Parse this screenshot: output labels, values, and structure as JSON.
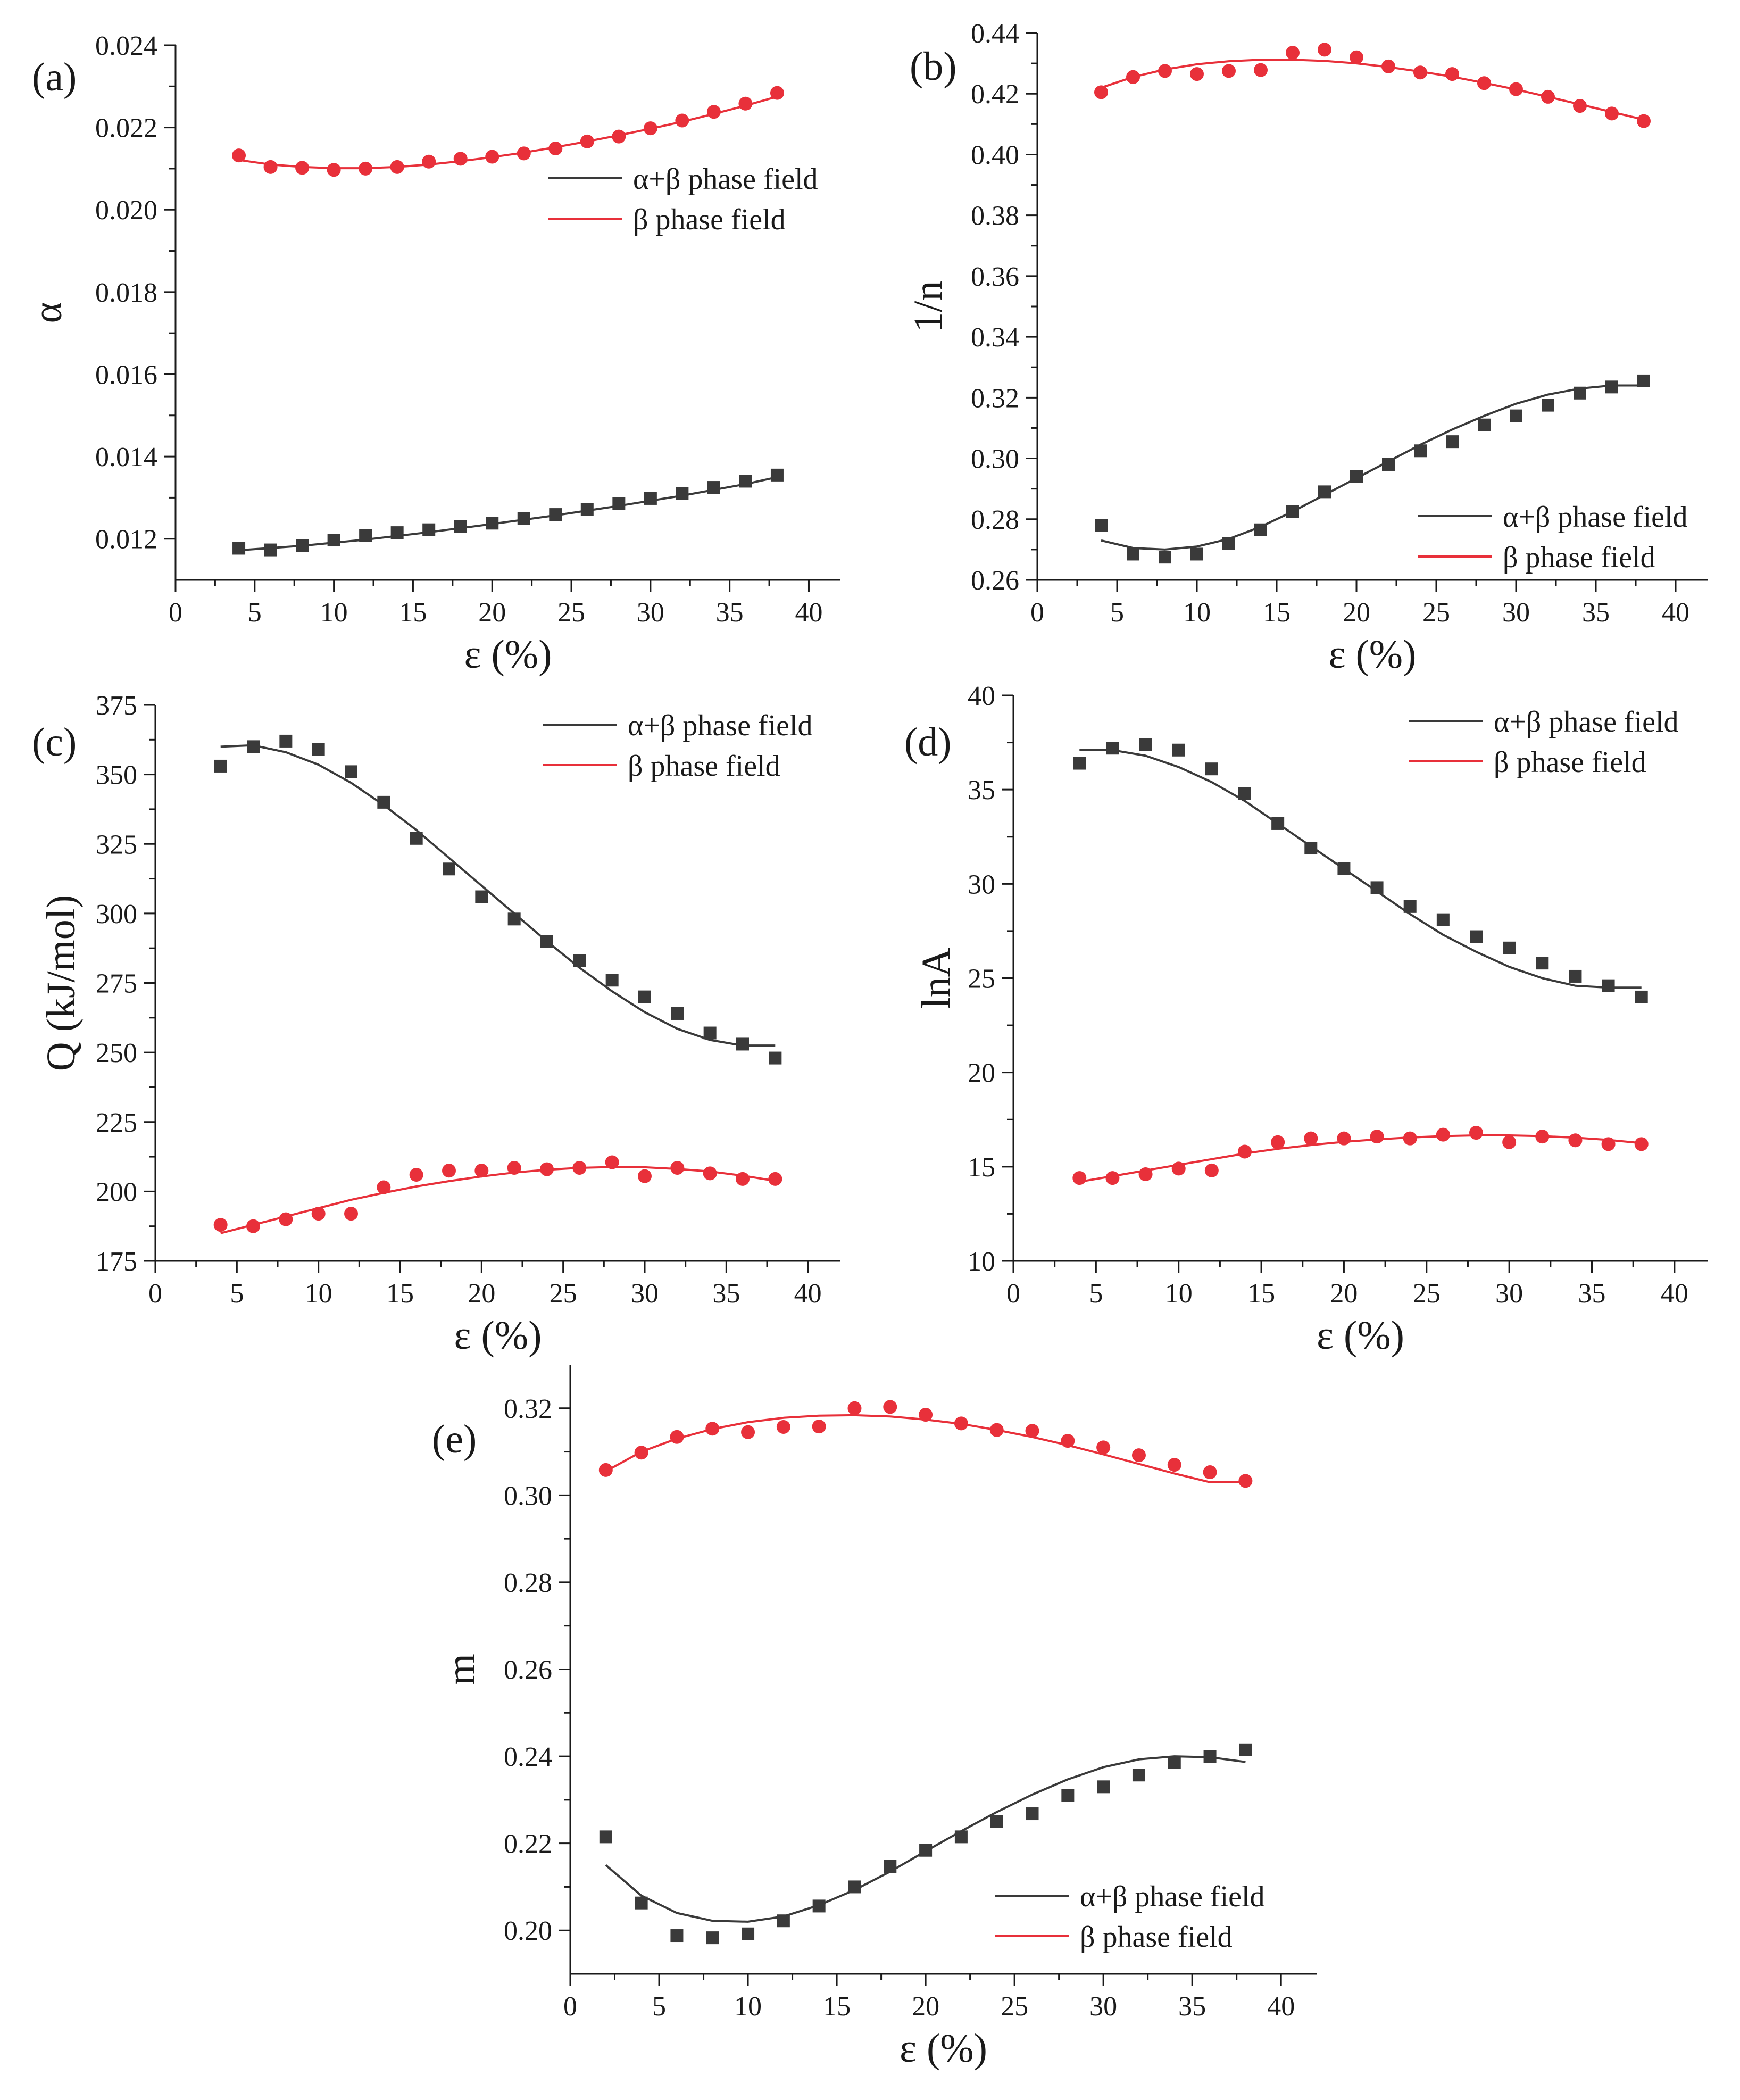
{
  "figure": {
    "title": ""
  },
  "colors": {
    "black_series": "#3a3a3a",
    "red_series": "#e8303a",
    "axis": "#1a1a1a"
  },
  "chart_data": [
    {
      "panel": "(a)",
      "type": "scatter",
      "title": "",
      "xlabel": "ε (%)",
      "ylabel": "α",
      "xlim": [
        0,
        42
      ],
      "ylim": [
        0.011,
        0.024
      ],
      "xticks": [
        0,
        5,
        10,
        15,
        20,
        25,
        30,
        35,
        40
      ],
      "xtick_labels": [
        "0",
        "5",
        "10",
        "15",
        "20",
        "25",
        "30",
        "35",
        "40"
      ],
      "yticks": [
        0.012,
        0.014,
        0.016,
        0.018,
        0.02,
        0.022,
        0.024
      ],
      "ytick_labels": [
        "0.012",
        "0.014",
        "0.016",
        "0.018",
        "0.020",
        "0.022",
        "0.024"
      ],
      "legend_position": "center-right",
      "series": [
        {
          "name": "α+β phase field",
          "marker": "square",
          "color": "#3a3a3a",
          "x": [
            4,
            6,
            8,
            10,
            12,
            14,
            16,
            18,
            20,
            22,
            24,
            26,
            28,
            30,
            32,
            34,
            36,
            38
          ],
          "y": [
            0.01177,
            0.01173,
            0.01184,
            0.01197,
            0.01208,
            0.01215,
            0.01222,
            0.0123,
            0.01238,
            0.01249,
            0.01259,
            0.01271,
            0.01285,
            0.01298,
            0.0131,
            0.01325,
            0.0134,
            0.01355
          ],
          "fit_x": [
            4,
            8,
            12,
            16,
            20,
            24,
            28,
            32,
            36,
            38
          ],
          "fit_y": [
            0.01172,
            0.01183,
            0.01198,
            0.01216,
            0.01236,
            0.01257,
            0.0128,
            0.01305,
            0.01333,
            0.0135
          ]
        },
        {
          "name": "β phase field",
          "marker": "circle",
          "color": "#e8303a",
          "x": [
            4,
            6,
            8,
            10,
            12,
            14,
            16,
            18,
            20,
            22,
            24,
            26,
            28,
            30,
            32,
            34,
            36,
            38
          ],
          "y": [
            0.02132,
            0.02104,
            0.02102,
            0.02097,
            0.021,
            0.02104,
            0.02117,
            0.02124,
            0.02129,
            0.02137,
            0.02149,
            0.02166,
            0.02178,
            0.02198,
            0.02217,
            0.02238,
            0.02258,
            0.02284
          ],
          "fit_x": [
            4,
            6,
            8,
            10,
            12,
            14,
            16,
            18,
            20,
            22,
            24,
            26,
            28,
            30,
            32,
            34,
            36,
            38
          ],
          "fit_y": [
            0.02121,
            0.0211,
            0.02104,
            0.02101,
            0.02101,
            0.02104,
            0.0211,
            0.02118,
            0.02128,
            0.02139,
            0.02152,
            0.02166,
            0.02181,
            0.02197,
            0.02214,
            0.02233,
            0.02253,
            0.02275
          ]
        }
      ]
    },
    {
      "panel": "(b)",
      "type": "scatter",
      "title": "",
      "xlabel": "ε (%)",
      "ylabel": "1/n",
      "xlim": [
        0,
        42
      ],
      "ylim": [
        0.26,
        0.44
      ],
      "xticks": [
        0,
        5,
        10,
        15,
        20,
        25,
        30,
        35,
        40
      ],
      "xtick_labels": [
        "0",
        "5",
        "10",
        "15",
        "20",
        "25",
        "30",
        "35",
        "40"
      ],
      "yticks": [
        0.26,
        0.28,
        0.3,
        0.32,
        0.34,
        0.36,
        0.38,
        0.4,
        0.42,
        0.44
      ],
      "ytick_labels": [
        "0.26",
        "0.28",
        "0.30",
        "0.32",
        "0.34",
        "0.36",
        "0.38",
        "0.40",
        "0.42",
        "0.44"
      ],
      "legend_position": "bottom-right",
      "series": [
        {
          "name": "α+β phase field",
          "marker": "square",
          "color": "#3a3a3a",
          "x": [
            4,
            6,
            8,
            10,
            12,
            14,
            16,
            18,
            20,
            22,
            24,
            26,
            28,
            30,
            32,
            34,
            36,
            38
          ],
          "y": [
            0.278,
            0.2685,
            0.2675,
            0.2685,
            0.272,
            0.2765,
            0.2825,
            0.289,
            0.294,
            0.298,
            0.3025,
            0.3055,
            0.311,
            0.314,
            0.3175,
            0.3215,
            0.3235,
            0.3255
          ],
          "fit_x": [
            4,
            6,
            8,
            10,
            12,
            14,
            16,
            18,
            20,
            22,
            24,
            26,
            28,
            30,
            32,
            34,
            36,
            38
          ],
          "fit_y": [
            0.273,
            0.2705,
            0.27,
            0.271,
            0.2735,
            0.2775,
            0.2825,
            0.288,
            0.2935,
            0.299,
            0.3045,
            0.3095,
            0.314,
            0.318,
            0.321,
            0.323,
            0.324,
            0.324
          ]
        },
        {
          "name": "β phase field",
          "marker": "circle",
          "color": "#e8303a",
          "x": [
            4,
            6,
            8,
            10,
            12,
            14,
            16,
            18,
            20,
            22,
            24,
            26,
            28,
            30,
            32,
            34,
            36,
            38
          ],
          "y": [
            0.4205,
            0.4255,
            0.4275,
            0.4265,
            0.4275,
            0.4278,
            0.4335,
            0.4345,
            0.432,
            0.429,
            0.427,
            0.4265,
            0.4235,
            0.4215,
            0.419,
            0.416,
            0.4135,
            0.411
          ],
          "fit_x": [
            4,
            6,
            8,
            10,
            12,
            14,
            16,
            18,
            20,
            22,
            24,
            26,
            28,
            30,
            32,
            34,
            36,
            38
          ],
          "fit_y": [
            0.422,
            0.4255,
            0.428,
            0.4297,
            0.4307,
            0.4312,
            0.4312,
            0.4308,
            0.43,
            0.4288,
            0.4273,
            0.4256,
            0.4236,
            0.4214,
            0.419,
            0.4165,
            0.414,
            0.4115
          ]
        }
      ]
    },
    {
      "panel": "(c)",
      "type": "scatter",
      "title": "",
      "xlabel": "ε (%)",
      "ylabel": "Q (kJ/mol)",
      "xlim": [
        0,
        42
      ],
      "ylim": [
        175,
        375
      ],
      "xticks": [
        0,
        5,
        10,
        15,
        20,
        25,
        30,
        35,
        40
      ],
      "xtick_labels": [
        "0",
        "5",
        "10",
        "15",
        "20",
        "25",
        "30",
        "35",
        "40"
      ],
      "yticks": [
        175,
        200,
        225,
        250,
        275,
        300,
        325,
        350,
        375
      ],
      "ytick_labels": [
        "175",
        "200",
        "225",
        "250",
        "275",
        "300",
        "325",
        "350",
        "375"
      ],
      "legend_position": "top-right",
      "series": [
        {
          "name": "α+β phase field",
          "marker": "square",
          "color": "#3a3a3a",
          "x": [
            4,
            6,
            8,
            10,
            12,
            14,
            16,
            18,
            20,
            22,
            24,
            26,
            28,
            30,
            32,
            34,
            36,
            38
          ],
          "y": [
            353,
            360,
            362,
            359,
            351,
            340,
            327,
            316,
            306,
            298,
            290,
            283,
            276,
            270,
            264,
            257,
            253,
            248
          ],
          "fit_x": [
            4,
            6,
            8,
            10,
            12,
            14,
            16,
            18,
            20,
            22,
            24,
            26,
            28,
            30,
            32,
            34,
            36,
            38
          ],
          "fit_y": [
            360,
            360.5,
            358,
            353.5,
            347,
            339,
            330,
            320,
            310,
            300,
            290,
            280.5,
            272,
            264.5,
            258.5,
            254.5,
            252.5,
            252.5
          ]
        },
        {
          "name": "β phase field",
          "marker": "circle",
          "color": "#e8303a",
          "x": [
            4,
            6,
            8,
            10,
            12,
            14,
            16,
            18,
            20,
            22,
            24,
            26,
            28,
            30,
            32,
            34,
            36,
            38
          ],
          "y": [
            188,
            187.5,
            190,
            192,
            192,
            201.5,
            206,
            207.5,
            207.5,
            208.5,
            208,
            208.5,
            210.5,
            205.5,
            208.5,
            206.5,
            204.5,
            204.5
          ],
          "fit_x": [
            4,
            6,
            8,
            10,
            12,
            14,
            16,
            18,
            20,
            22,
            24,
            26,
            28,
            30,
            32,
            34,
            36,
            38
          ],
          "fit_y": [
            185,
            188,
            191,
            194,
            197,
            199.5,
            201.8,
            203.7,
            205.4,
            206.8,
            207.8,
            208.5,
            208.8,
            208.7,
            208.1,
            207.2,
            205.7,
            203.8
          ]
        }
      ]
    },
    {
      "panel": "(d)",
      "type": "scatter",
      "title": "",
      "xlabel": "ε (%)",
      "ylabel": "lnA",
      "xlim": [
        0,
        42
      ],
      "ylim": [
        10,
        40
      ],
      "xticks": [
        0,
        5,
        10,
        15,
        20,
        25,
        30,
        35,
        40
      ],
      "xtick_labels": [
        "0",
        "5",
        "10",
        "15",
        "20",
        "25",
        "30",
        "35",
        "40"
      ],
      "yticks": [
        10,
        15,
        20,
        25,
        30,
        35,
        40
      ],
      "ytick_labels": [
        "10",
        "15",
        "20",
        "25",
        "30",
        "35",
        "40"
      ],
      "legend_position": "top-right",
      "series": [
        {
          "name": "α+β phase field",
          "marker": "square",
          "color": "#3a3a3a",
          "x": [
            4,
            6,
            8,
            10,
            12,
            14,
            16,
            18,
            20,
            22,
            24,
            26,
            28,
            30,
            32,
            34,
            36,
            38
          ],
          "y": [
            36.4,
            37.2,
            37.4,
            37.1,
            36.1,
            34.8,
            33.2,
            31.9,
            30.8,
            29.8,
            28.8,
            28.1,
            27.2,
            26.6,
            25.8,
            25.1,
            24.6,
            24.0
          ],
          "fit_x": [
            4,
            6,
            8,
            10,
            12,
            14,
            16,
            18,
            20,
            22,
            24,
            26,
            28,
            30,
            32,
            34,
            36,
            38
          ],
          "fit_y": [
            37.1,
            37.1,
            36.8,
            36.2,
            35.4,
            34.4,
            33.2,
            32.0,
            30.8,
            29.6,
            28.4,
            27.3,
            26.4,
            25.6,
            25.0,
            24.6,
            24.5,
            24.5
          ]
        },
        {
          "name": "β phase field",
          "marker": "circle",
          "color": "#e8303a",
          "x": [
            4,
            6,
            8,
            10,
            12,
            14,
            16,
            18,
            20,
            22,
            24,
            26,
            28,
            30,
            32,
            34,
            36,
            38
          ],
          "y": [
            14.4,
            14.4,
            14.6,
            14.9,
            14.8,
            15.8,
            16.3,
            16.5,
            16.5,
            16.6,
            16.5,
            16.7,
            16.8,
            16.3,
            16.6,
            16.4,
            16.2,
            16.2
          ],
          "fit_x": [
            4,
            6,
            8,
            10,
            12,
            14,
            16,
            18,
            20,
            22,
            24,
            26,
            28,
            30,
            32,
            34,
            36,
            38
          ],
          "fit_y": [
            14.2,
            14.5,
            14.8,
            15.1,
            15.4,
            15.7,
            15.95,
            16.15,
            16.32,
            16.45,
            16.55,
            16.62,
            16.66,
            16.66,
            16.62,
            16.54,
            16.42,
            16.25
          ]
        }
      ]
    },
    {
      "panel": "(e)",
      "type": "scatter",
      "title": "",
      "xlabel": "ε (%)",
      "ylabel": "m",
      "xlim": [
        0,
        42
      ],
      "ylim": [
        0.19,
        0.33
      ],
      "xticks": [
        0,
        5,
        10,
        15,
        20,
        25,
        30,
        35,
        40
      ],
      "xtick_labels": [
        "0",
        "5",
        "10",
        "15",
        "20",
        "25",
        "30",
        "35",
        "40"
      ],
      "yticks": [
        0.2,
        0.22,
        0.24,
        0.26,
        0.28,
        0.3,
        0.32
      ],
      "ytick_labels": [
        "0.20",
        "0.22",
        "0.24",
        "0.26",
        "0.28",
        "0.30",
        "0.32"
      ],
      "legend_position": "bottom-right",
      "series": [
        {
          "name": "α+β phase field",
          "marker": "square",
          "color": "#3a3a3a",
          "x": [
            2,
            4,
            6,
            8,
            10,
            12,
            14,
            16,
            18,
            20,
            22,
            24,
            26,
            28,
            30,
            32,
            34,
            36,
            38
          ],
          "y": [
            0.2215,
            0.2063,
            0.1988,
            0.1983,
            0.1992,
            0.2022,
            0.2056,
            0.21,
            0.2147,
            0.2184,
            0.2215,
            0.225,
            0.2268,
            0.231,
            0.233,
            0.2357,
            0.2386,
            0.2399,
            0.2415
          ],
          "fit_x": [
            2,
            4,
            6,
            8,
            10,
            12,
            14,
            16,
            18,
            20,
            22,
            24,
            26,
            28,
            30,
            32,
            34,
            36,
            38
          ],
          "fit_y": [
            0.215,
            0.208,
            0.204,
            0.2022,
            0.202,
            0.2032,
            0.2058,
            0.2093,
            0.2135,
            0.2182,
            0.2228,
            0.2272,
            0.2312,
            0.2347,
            0.2375,
            0.2393,
            0.24,
            0.2398,
            0.2387
          ]
        },
        {
          "name": "β phase field",
          "marker": "circle",
          "color": "#e8303a",
          "x": [
            2,
            4,
            6,
            8,
            10,
            12,
            14,
            16,
            18,
            20,
            22,
            24,
            26,
            28,
            30,
            32,
            34,
            36,
            38
          ],
          "y": [
            0.3058,
            0.3098,
            0.3134,
            0.3153,
            0.3145,
            0.3157,
            0.3158,
            0.32,
            0.3203,
            0.3185,
            0.3165,
            0.315,
            0.3148,
            0.3125,
            0.311,
            0.3092,
            0.307,
            0.3053,
            0.3033
          ],
          "fit_x": [
            2,
            4,
            6,
            8,
            10,
            12,
            14,
            16,
            18,
            20,
            22,
            24,
            26,
            28,
            30,
            32,
            34,
            36,
            38
          ],
          "fit_y": [
            0.3055,
            0.31,
            0.313,
            0.3152,
            0.3168,
            0.3178,
            0.3183,
            0.3184,
            0.3181,
            0.3174,
            0.3164,
            0.315,
            0.3134,
            0.3115,
            0.3094,
            0.3072,
            0.305,
            0.303,
            0.303
          ]
        }
      ]
    }
  ]
}
